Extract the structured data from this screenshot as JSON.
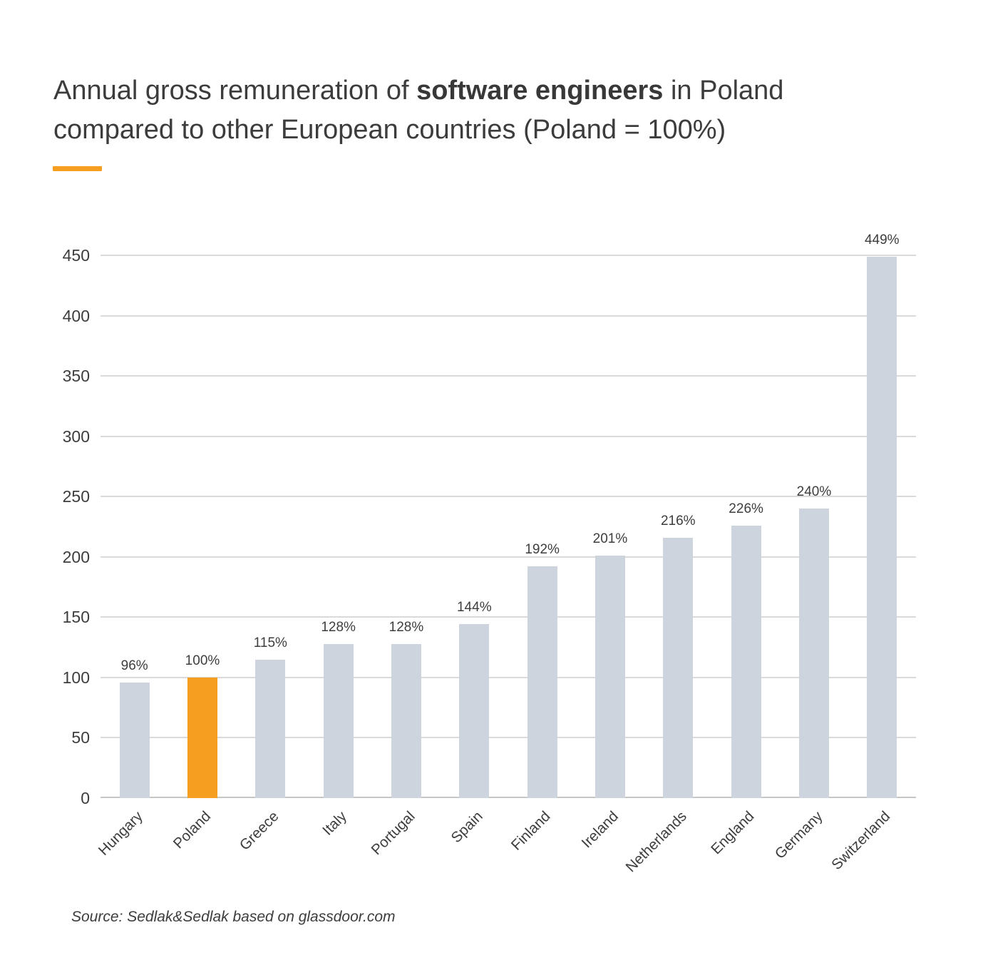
{
  "title": {
    "line1_regular": "Annual gross remuneration of ",
    "line1_bold": "software engineers",
    "line1_after": " in Poland",
    "line2": "compared to other European countries (Poland = 100%)"
  },
  "source": "Source: Sedlak&Sedlak based on glassdoor.com",
  "colors": {
    "accent_orange": "#F59E1F",
    "bar_gray": "#CDD4DD",
    "text": "#3D3D3D",
    "gridline": "#DADADA",
    "baseline": "#C6C6C6"
  },
  "chart_data": {
    "type": "bar",
    "categories": [
      "Hungary",
      "Poland",
      "Greece",
      "Italy",
      "Portugal",
      "Spain",
      "Finland",
      "Ireland",
      "Netherlands",
      "England",
      "Germany",
      "Switzerland"
    ],
    "values": [
      96,
      100,
      115,
      128,
      128,
      144,
      192,
      201,
      216,
      226,
      240,
      449
    ],
    "value_labels": [
      "96%",
      "100%",
      "115%",
      "128%",
      "128%",
      "144%",
      "192%",
      "201%",
      "216%",
      "226%",
      "240%",
      "449%"
    ],
    "highlighted_category": "Poland",
    "title": "Annual gross remuneration of software engineers in Poland compared to other European countries (Poland = 100%)",
    "xlabel": "",
    "ylabel": "",
    "ylim": [
      0,
      450
    ],
    "yticks": [
      0,
      50,
      100,
      150,
      200,
      250,
      300,
      350,
      400,
      450
    ],
    "grid": true,
    "legend": false,
    "x_label_rotation_deg": -45
  }
}
